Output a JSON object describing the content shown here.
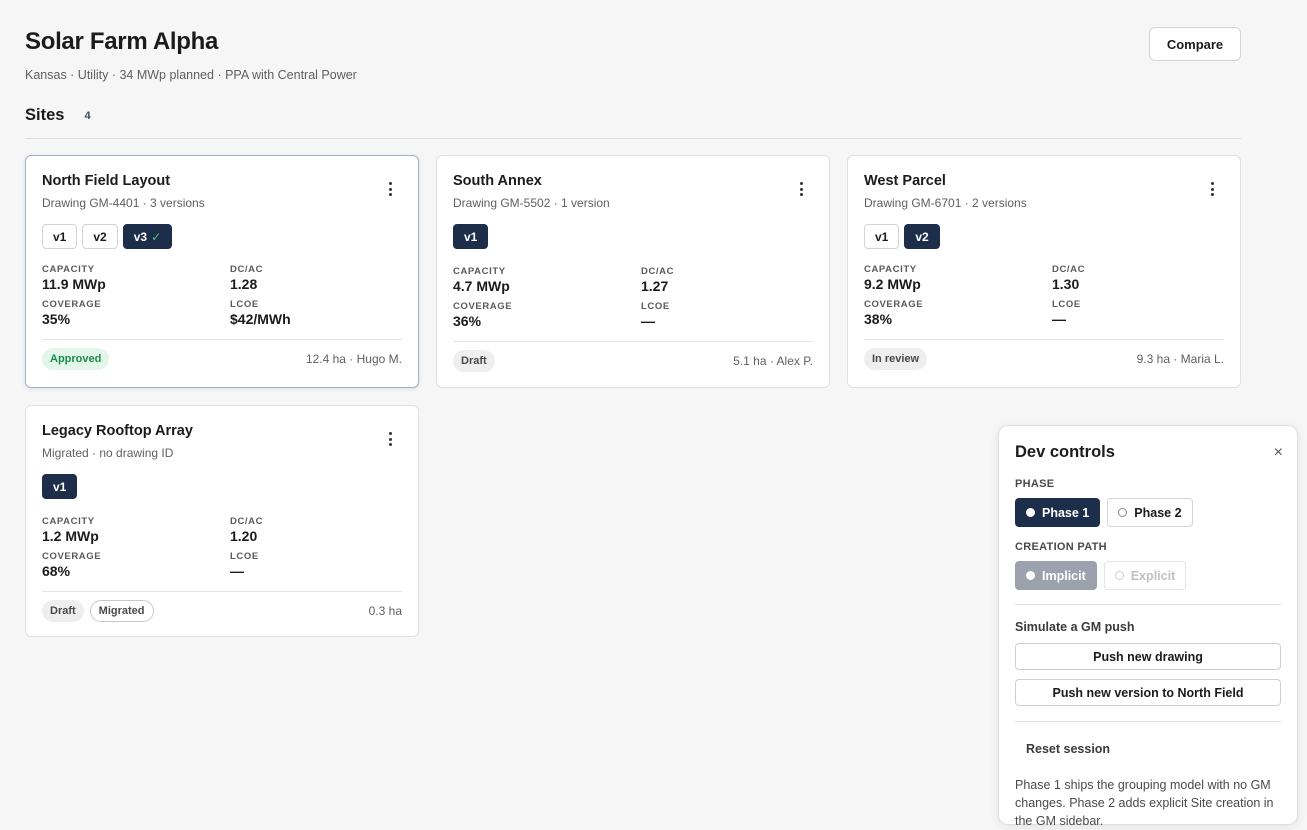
{
  "header": {
    "title": "Solar Farm Alpha",
    "subtitle": "Kansas · Utility · 34 MWp planned · PPA with Central Power",
    "compare_label": "Compare"
  },
  "sites": {
    "label": "Sites",
    "count": "4",
    "labels": {
      "capacity": "CAPACITY",
      "dcac": "DC/AC",
      "coverage": "COVERAGE",
      "lcoe": "LCOE"
    },
    "cards": [
      {
        "title": "North Field Layout",
        "subtitle": "Drawing GM-4401 · 3 versions",
        "versions": [
          "v1",
          "v2",
          "v3"
        ],
        "active_version": "v3",
        "active_check": "✓",
        "capacity": "11.9 MWp",
        "dcac": "1.28",
        "coverage": "35%",
        "lcoe": "$42/MWh",
        "badges": [
          "Approved"
        ],
        "meta": "12.4 ha · Hugo M."
      },
      {
        "title": "South Annex",
        "subtitle": "Drawing GM-5502 · 1 version",
        "versions": [
          "v1"
        ],
        "active_version": "v1",
        "capacity": "4.7 MWp",
        "dcac": "1.27",
        "coverage": "36%",
        "lcoe": "—",
        "badges": [
          "Draft"
        ],
        "meta": "5.1 ha · Alex P."
      },
      {
        "title": "West Parcel",
        "subtitle": "Drawing GM-6701 · 2 versions",
        "versions": [
          "v1",
          "v2"
        ],
        "active_version": "v2",
        "capacity": "9.2 MWp",
        "dcac": "1.30",
        "coverage": "38%",
        "lcoe": "—",
        "badges": [
          "In review"
        ],
        "meta": "9.3 ha · Maria L."
      },
      {
        "title": "Legacy Rooftop Array",
        "subtitle": "Migrated · no drawing ID",
        "versions": [
          "v1"
        ],
        "active_version": "v1",
        "capacity": "1.2 MWp",
        "dcac": "1.20",
        "coverage": "68%",
        "lcoe": "—",
        "badges": [
          "Draft",
          "Migrated"
        ],
        "meta": "0.3 ha"
      }
    ]
  },
  "dev_controls": {
    "title": "Dev controls",
    "close": "×",
    "phase_label": "PHASE",
    "phase_options": [
      "Phase 1",
      "Phase 2"
    ],
    "phase_selected": "Phase 1",
    "creation_label": "CREATION PATH",
    "creation_options": [
      "Implicit",
      "Explicit"
    ],
    "creation_selected": "Implicit",
    "simulate_label": "Simulate a GM push",
    "push_new_drawing": "Push new drawing",
    "push_new_version": "Push new version to North Field",
    "reset": "Reset session",
    "note": "Phase 1 ships the grouping model with no GM changes. Phase 2 adds explicit Site creation in the GM sidebar."
  }
}
